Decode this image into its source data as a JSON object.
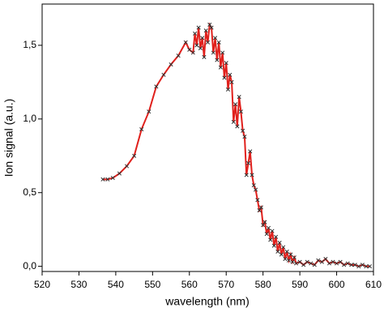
{
  "chart_data": {
    "type": "line",
    "x_label": "wavelength (nm)",
    "y_label": "Ion signal (a.u.)",
    "xlim": [
      520,
      610
    ],
    "xticks": [
      520,
      530,
      540,
      550,
      560,
      570,
      580,
      590,
      600,
      610
    ],
    "ylim": [
      -0.035,
      1.78
    ],
    "yticks": [
      {
        "value": 0,
        "label": "0,0"
      },
      {
        "value": 0.5,
        "label": "0,5"
      },
      {
        "value": 1,
        "label": "1,0"
      },
      {
        "value": 1.5,
        "label": "1,5"
      }
    ],
    "series": [
      {
        "color": "#e0201c",
        "marker_color": "#333333",
        "x": [
          536.5,
          537.8,
          539.2,
          541,
          543,
          545,
          547,
          549,
          551,
          553,
          555,
          557,
          559,
          560,
          561,
          561.5,
          562,
          562.5,
          563,
          563.5,
          564,
          564.5,
          565,
          565.5,
          566,
          566.5,
          567,
          567.5,
          568,
          568.5,
          569,
          569.5,
          570,
          570.5,
          571,
          571.5,
          572,
          572.5,
          573,
          573.5,
          574,
          574.5,
          575,
          575.5,
          576,
          576.5,
          577,
          577.5,
          578,
          578.5,
          579,
          579.5,
          580,
          580.5,
          581,
          581.5,
          582,
          582.5,
          583,
          583.5,
          584,
          584.5,
          585,
          585.5,
          586,
          586.5,
          587,
          587.5,
          588,
          588.5,
          589,
          590,
          591,
          592,
          593,
          594,
          595,
          596,
          597,
          598,
          599,
          600,
          601,
          602,
          603,
          604,
          605,
          606,
          607,
          608,
          609
        ],
        "values": [
          0.59,
          0.59,
          0.6,
          0.63,
          0.68,
          0.75,
          0.93,
          1.05,
          1.22,
          1.3,
          1.37,
          1.43,
          1.52,
          1.47,
          1.45,
          1.58,
          1.5,
          1.62,
          1.48,
          1.55,
          1.42,
          1.6,
          1.52,
          1.64,
          1.62,
          1.45,
          1.55,
          1.4,
          1.52,
          1.35,
          1.45,
          1.28,
          1.38,
          1.2,
          1.3,
          1.25,
          0.98,
          1.1,
          0.95,
          1.15,
          1.05,
          0.92,
          0.88,
          0.62,
          0.7,
          0.78,
          0.62,
          0.55,
          0.52,
          0.45,
          0.38,
          0.4,
          0.28,
          0.3,
          0.22,
          0.26,
          0.18,
          0.24,
          0.14,
          0.2,
          0.1,
          0.16,
          0.08,
          0.13,
          0.05,
          0.1,
          0.04,
          0.08,
          0.03,
          0.06,
          0.02,
          0.03,
          0.01,
          0.03,
          0.02,
          0.01,
          0.04,
          0.03,
          0.05,
          0.02,
          0.03,
          0.02,
          0.03,
          0.01,
          0.02,
          0.01,
          0.01,
          0,
          0.01,
          0,
          0
        ]
      }
    ]
  }
}
